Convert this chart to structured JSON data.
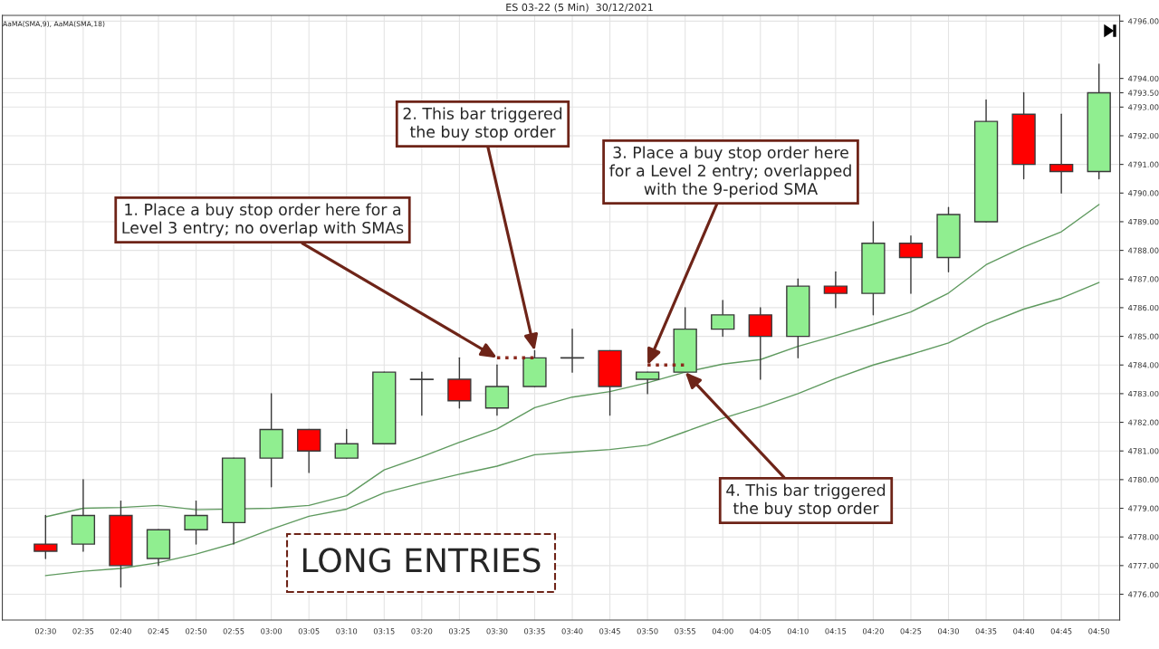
{
  "chart_data": {
    "type": "candlestick",
    "title": "ES 03-22 (5 Min)  30/12/2021",
    "categories": [
      "02:30",
      "02:35",
      "02:40",
      "02:45",
      "02:50",
      "02:55",
      "03:00",
      "03:05",
      "03:10",
      "03:15",
      "03:20",
      "03:25",
      "03:30",
      "03:35",
      "03:40",
      "03:45",
      "03:50",
      "03:55",
      "04:00",
      "04:05",
      "04:10",
      "04:15",
      "04:20",
      "04:25",
      "04:30",
      "04:35",
      "04:40",
      "04:45",
      "04:50"
    ],
    "ohlc": [
      [
        4777.75,
        4778.75,
        4777.25,
        4777.5
      ],
      [
        4777.75,
        4780.0,
        4777.5,
        4778.75
      ],
      [
        4778.75,
        4779.25,
        4776.25,
        4777.0
      ],
      [
        4777.25,
        4778.25,
        4777.0,
        4778.25
      ],
      [
        4778.25,
        4779.25,
        4777.75,
        4778.75
      ],
      [
        4778.5,
        4780.75,
        4777.75,
        4780.75
      ],
      [
        4780.75,
        4783.0,
        4779.75,
        4781.75
      ],
      [
        4781.75,
        4781.75,
        4780.25,
        4781.0
      ],
      [
        4780.75,
        4781.75,
        4780.75,
        4781.25
      ],
      [
        4781.25,
        4783.75,
        4781.25,
        4783.75
      ],
      [
        4783.5,
        4783.75,
        4782.25,
        4783.5
      ],
      [
        4783.5,
        4784.25,
        4782.5,
        4782.75
      ],
      [
        4782.5,
        4784.0,
        4782.25,
        4783.25
      ],
      [
        4783.25,
        4784.5,
        4783.25,
        4784.25
      ],
      [
        4784.25,
        4785.25,
        4783.75,
        4784.25
      ],
      [
        4784.5,
        4784.5,
        4782.25,
        4783.25
      ],
      [
        4783.5,
        4783.75,
        4783.0,
        4783.75
      ],
      [
        4783.75,
        4786.0,
        4783.75,
        4785.25
      ],
      [
        4785.25,
        4786.25,
        4785.0,
        4785.75
      ],
      [
        4785.75,
        4786.0,
        4783.5,
        4785.0
      ],
      [
        4785.0,
        4787.0,
        4784.25,
        4786.75
      ],
      [
        4786.75,
        4787.25,
        4786.0,
        4786.5
      ],
      [
        4786.5,
        4789.0,
        4785.75,
        4788.25
      ],
      [
        4788.25,
        4788.5,
        4786.5,
        4787.75
      ],
      [
        4787.75,
        4789.5,
        4787.25,
        4789.25
      ],
      [
        4789.0,
        4793.25,
        4789.0,
        4792.5
      ],
      [
        4792.75,
        4793.5,
        4790.5,
        4791.0
      ],
      [
        4791.0,
        4792.75,
        4790.0,
        4790.75
      ],
      [
        4790.75,
        4794.5,
        4790.5,
        4793.5
      ]
    ],
    "colors": [
      "#ff0000",
      "#90ee90",
      "#ff0000",
      "#90ee90",
      "#90ee90",
      "#90ee90",
      "#90ee90",
      "#ff0000",
      "#90ee90",
      "#90ee90",
      "#3a3a3a",
      "#ff0000",
      "#90ee90",
      "#90ee90",
      "#3a3a3a",
      "#ff0000",
      "#90ee90",
      "#90ee90",
      "#90ee90",
      "#ff0000",
      "#90ee90",
      "#ff0000",
      "#90ee90",
      "#ff0000",
      "#90ee90",
      "#90ee90",
      "#ff0000",
      "#ff0000",
      "#90ee90"
    ],
    "series": [
      {
        "type": "line",
        "color": "#5f9a5f",
        "values": [
          4778.7,
          4779.0,
          4779.03,
          4779.1,
          4778.95,
          null,
          4779.0,
          4779.1,
          4779.44,
          4780.34,
          4780.8,
          4781.3,
          4781.77,
          4782.51,
          4782.88,
          4783.07,
          4783.38,
          4783.75,
          4784.03,
          4784.19,
          4784.65,
          4785.02,
          4785.42,
          4785.85,
          4786.51,
          4787.5,
          4788.12,
          4788.65,
          4789.6
        ]
      },
      {
        "type": "line",
        "color": "#5f9a5f",
        "values": [
          4776.65,
          4776.8,
          4776.9,
          4777.1,
          4777.4,
          4777.77,
          4778.27,
          4778.72,
          4778.97,
          4779.54,
          4779.88,
          4780.19,
          4780.47,
          4780.87,
          4780.96,
          4781.05,
          4781.2,
          4781.67,
          4782.14,
          4782.54,
          4783.0,
          4783.53,
          4784.0,
          4784.37,
          4784.77,
          4785.43,
          4785.95,
          4786.33,
          4786.88
        ]
      },
      {
        "type": "line",
        "color": "#8b2a1e",
        "line_style": "dotted",
        "x": [
          "03:30",
          "03:35"
        ],
        "values": [
          4784.25,
          4784.25
        ]
      },
      {
        "type": "line",
        "color": "#8b2a1e",
        "line_style": "dotted",
        "x": [
          "03:50",
          "03:55"
        ],
        "values": [
          4784.0,
          4784.0
        ]
      }
    ],
    "ylim": [
      4775.1,
      4796.2
    ],
    "yticks": [
      {
        "value": 4776,
        "label": "4776.00"
      },
      {
        "value": 4777,
        "label": "4777.00"
      },
      {
        "value": 4778,
        "label": "4778.00"
      },
      {
        "value": 4779,
        "label": "4779.00"
      },
      {
        "value": 4780,
        "label": "4780.00"
      },
      {
        "value": 4781,
        "label": "4781.00"
      },
      {
        "value": 4782,
        "label": "4782.00"
      },
      {
        "value": 4783,
        "label": "4783.00"
      },
      {
        "value": 4784,
        "label": "4784.00"
      },
      {
        "value": 4785,
        "label": "4785.00"
      },
      {
        "value": 4786,
        "label": "4786.00"
      },
      {
        "value": 4787,
        "label": "4787.00"
      },
      {
        "value": 4788,
        "label": "4788.00"
      },
      {
        "value": 4789,
        "label": "4789.00"
      },
      {
        "value": 4790,
        "label": "4790.00"
      },
      {
        "value": 4791,
        "label": "4791.00"
      },
      {
        "value": 4792,
        "label": "4792.00"
      },
      {
        "value": 4793,
        "label": "4793.00"
      },
      {
        "value": 4793.5,
        "label": "4793.50"
      },
      {
        "value": 4794,
        "label": "4794.00"
      },
      {
        "value": 4796,
        "label": "4796.00"
      }
    ],
    "grid": true,
    "annotations": [
      "AaMA(SMA,9), AaMA(SMA,18)",
      {
        "text": "1. Place a buy stop order here for a\nLevel 3 entry; no overlap with SMAs",
        "x": "03:30",
        "y": 4784.25
      },
      {
        "text": "2. This bar triggered\nthe buy stop order",
        "x": "03:35",
        "y": 4784.5
      },
      {
        "text": "3. Place a buy stop order here\nfor a Level 2 entry; overlapped\nwith the 9-period SMA",
        "x": "03:50",
        "y": 4784.0
      },
      {
        "text": "4. This bar triggered\nthe buy stop order",
        "x": "03:55",
        "y": 4783.75
      },
      "LONG ENTRIES"
    ]
  }
}
